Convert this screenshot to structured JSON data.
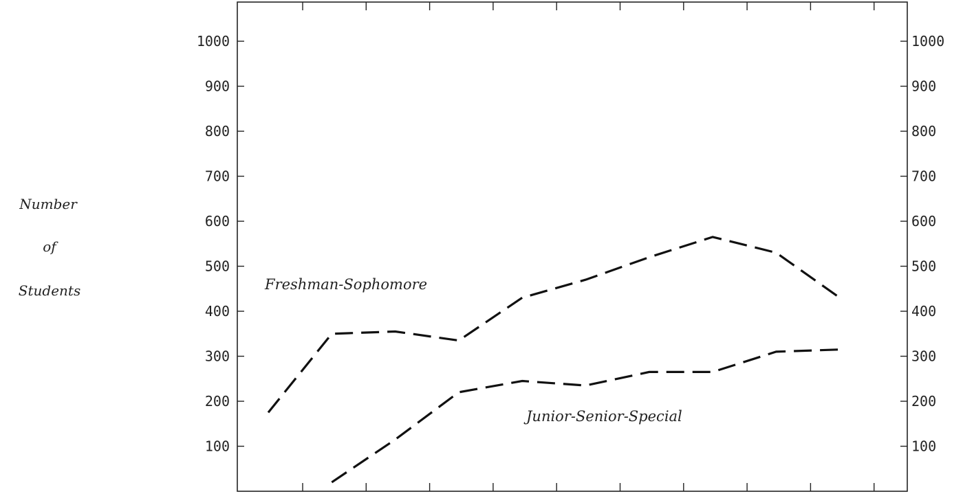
{
  "chart_data": {
    "type": "line",
    "ylabel": [
      "Number",
      "of",
      "Students"
    ],
    "ylim": [
      0,
      1000
    ],
    "yticks": [
      100,
      200,
      300,
      400,
      500,
      600,
      700,
      800,
      900,
      1000
    ],
    "x": [
      1,
      2,
      3,
      4,
      5,
      6,
      7,
      8,
      9,
      10
    ],
    "grid": false,
    "legend": "none",
    "series": [
      {
        "name": "Freshman-Sophomore",
        "x": [
          1,
          2,
          3,
          4,
          5,
          6,
          7,
          8,
          9,
          10
        ],
        "values": [
          175,
          350,
          355,
          335,
          430,
          470,
          520,
          565,
          530,
          430
        ],
        "color": "#111111"
      },
      {
        "name": "Junior-Senior-Special",
        "x": [
          2,
          3,
          4,
          5,
          6,
          7,
          8,
          9,
          10
        ],
        "values": [
          20,
          115,
          220,
          245,
          235,
          265,
          265,
          310,
          315
        ],
        "color": "#111111"
      }
    ]
  }
}
